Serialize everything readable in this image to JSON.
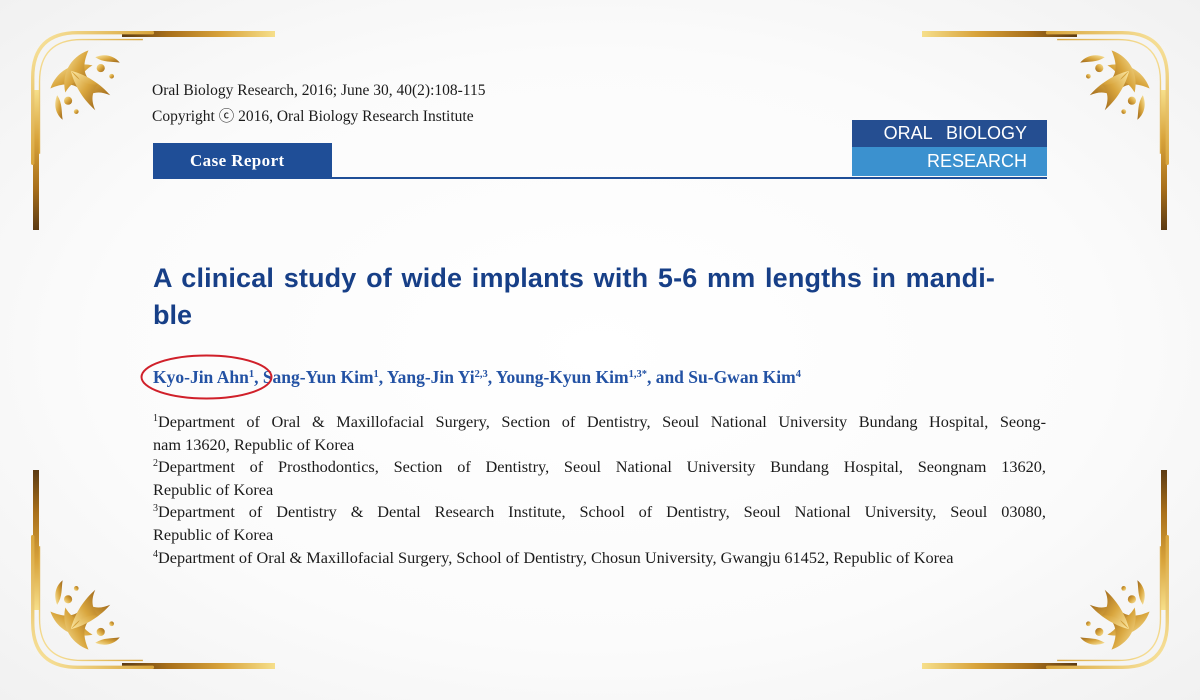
{
  "header": {
    "journal_line": "Oral Biology Research, 2016; June 30, 40(2):108-115",
    "copyright_line": "Copyright ⓒ 2016, Oral Biology Research Institute",
    "article_type": "Case Report"
  },
  "journal_logo": {
    "line1": "ORAL BIOLOGY",
    "line2": "RESEARCH"
  },
  "title": {
    "line1": "A clinical study of wide implants with 5-6 mm lengths in mandi-",
    "line2": "ble"
  },
  "authors": [
    {
      "name": "Kyo-Jin Ahn",
      "sup": "1",
      "sep": ", "
    },
    {
      "name": "Sang-Yun Kim",
      "sup": "1",
      "sep": ", "
    },
    {
      "name": "Yang-Jin Yi",
      "sup": "2,3",
      "sep": ", "
    },
    {
      "name": "Young-Kyun Kim",
      "sup": "1,3*",
      "sep": ", and "
    },
    {
      "name": "Su-Gwan Kim",
      "sup": "4",
      "sep": ""
    }
  ],
  "affiliations": [
    {
      "num": "1",
      "line1": "Department of Oral & Maxillofacial Surgery, Section of Dentistry, Seoul National University Bundang Hospital, Seong-",
      "line2": "nam 13620, Republic of Korea"
    },
    {
      "num": "2",
      "line1": "Department of Prosthodontics, Section of Dentistry, Seoul National University Bundang Hospital, Seongnam 13620,",
      "line2": "Republic of Korea"
    },
    {
      "num": "3",
      "line1": "Department of Dentistry & Dental Research Institute, School of Dentistry, Seoul National University, Seoul 03080,",
      "line2": "Republic of Korea"
    },
    {
      "num": "4",
      "line1": "Department of Oral & Maxillofacial Surgery, School of Dentistry, Chosun University, Gwangju 61452, Republic of Korea",
      "line2": ""
    }
  ],
  "colors": {
    "title": "#173f87",
    "authors": "#2352a4",
    "case_tab": "#1f4e97",
    "logo_top": "#254e91",
    "logo_bottom": "#3b91cf",
    "highlight_ellipse": "#d0202a",
    "frame_gold": "#c9942a"
  },
  "icons": {
    "corner": "gold-filigree-corner-ornament"
  }
}
